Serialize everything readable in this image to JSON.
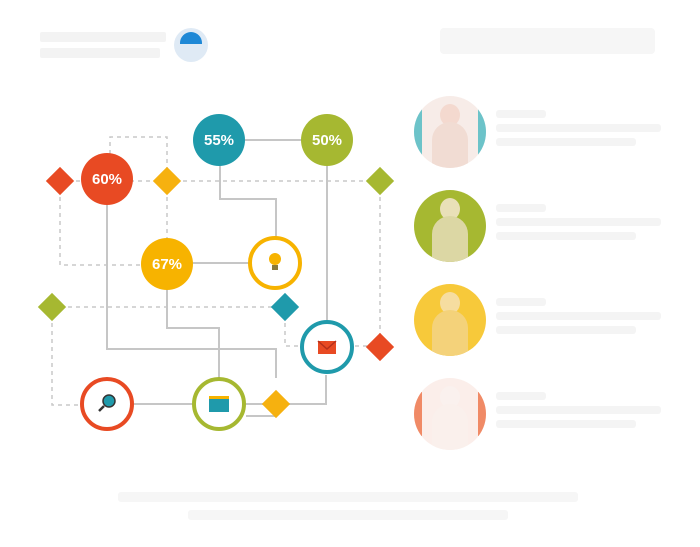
{
  "nodes": {
    "percent_60": "60%",
    "percent_55": "55%",
    "percent_50": "50%",
    "percent_67": "67%"
  },
  "colors": {
    "red": "#e84a23",
    "teal": "#1f9aab",
    "olive": "#a6b831",
    "yellow": "#f7b300",
    "orange": "#f6b10f",
    "connector": "#c9c9c9",
    "dashed": "#c9c9c9"
  },
  "icons": [
    "lightbulb-icon",
    "envelope-icon",
    "magnifier-icon",
    "calendar-icon"
  ],
  "people": [
    {
      "name": "person-1",
      "accent": "#6cc3c9"
    },
    {
      "name": "person-2",
      "accent": "#a6b831"
    },
    {
      "name": "person-3",
      "accent": "#f7b300"
    },
    {
      "name": "person-4",
      "accent": "#e84a23"
    }
  ]
}
